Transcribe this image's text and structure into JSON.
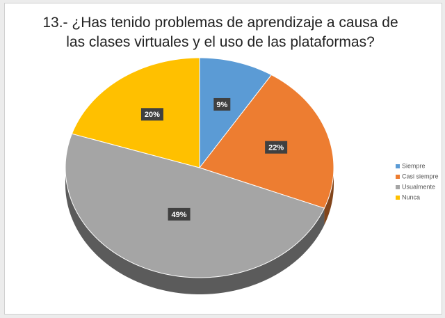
{
  "chart_data": {
    "type": "pie",
    "title": "13.- ¿Has tenido problemas de aprendizaje a causa de las clases virtuales y el uso de las plataformas?",
    "categories": [
      "Siempre",
      "Casi siempre",
      "Usualmente",
      "Nunca"
    ],
    "values": [
      9,
      22,
      49,
      20
    ],
    "value_labels": [
      "9%",
      "22%",
      "49%",
      "20%"
    ],
    "colors": [
      "#5b9bd5",
      "#ed7d31",
      "#a5a5a5",
      "#ffc000"
    ],
    "legend": "right"
  }
}
